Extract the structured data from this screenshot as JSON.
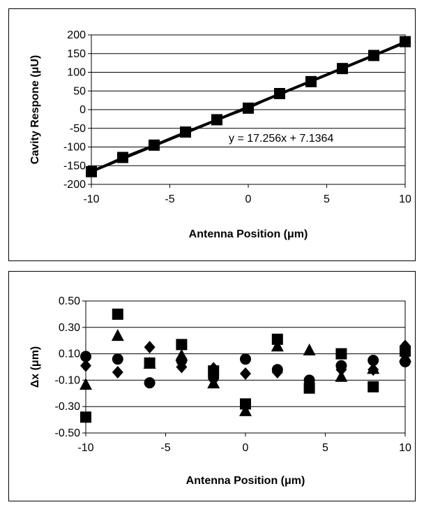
{
  "chart_data": [
    {
      "type": "line",
      "xlabel": "Antenna Position (μm)",
      "ylabel": "Cavity Respone (μU)",
      "xlim": [
        -10,
        10
      ],
      "ylim": [
        -200,
        200
      ],
      "xticks": [
        "-10",
        "-5",
        "0",
        "5",
        "10"
      ],
      "yticks": [
        "200",
        "150",
        "100",
        "50",
        "0",
        "-50",
        "-100",
        "-150",
        "-200"
      ],
      "grid": "horizontal",
      "annotation": "y = 17.256x + 7.1364",
      "trendline": {
        "slope": 17.256,
        "intercept": 7.1364
      },
      "series": [
        {
          "marker": "square",
          "x": [
            -10,
            -8,
            -6,
            -4,
            -2,
            0,
            2,
            4,
            6,
            8,
            10
          ],
          "y": [
            -166,
            -128,
            -95,
            -60,
            -27,
            4,
            43,
            75,
            110,
            145,
            182
          ]
        }
      ]
    },
    {
      "type": "scatter",
      "xlabel": "Antenna Position (μm)",
      "ylabel": "Δx (μm)",
      "xlim": [
        -10,
        10
      ],
      "ylim": [
        -0.5,
        0.5
      ],
      "xticks": [
        "-10",
        "-5",
        "0",
        "5",
        "10"
      ],
      "yticks": [
        "0.50",
        "0.30",
        "0.10",
        "-0.10",
        "-0.30",
        "-0.50"
      ],
      "grid": "horizontal",
      "series": [
        {
          "marker": "square",
          "x": [
            -10,
            -8,
            -6,
            -4,
            -2,
            0,
            2,
            4,
            6,
            8,
            10
          ],
          "y": [
            -0.38,
            0.4,
            0.03,
            0.17,
            -0.03,
            -0.28,
            0.21,
            -0.16,
            0.1,
            -0.15,
            0.12
          ]
        },
        {
          "marker": "triangle",
          "x": [
            -10,
            -8,
            -6,
            -4,
            -2,
            0,
            2,
            4,
            6,
            8,
            10
          ],
          "y": [
            -0.13,
            0.24,
            0.03,
            0.09,
            -0.12,
            -0.33,
            0.16,
            0.13,
            -0.07,
            -0.01,
            0.08
          ]
        },
        {
          "marker": "diamond",
          "x": [
            -10,
            -8,
            -6,
            -4,
            -2,
            0,
            2,
            4,
            6,
            8,
            10
          ],
          "y": [
            0.01,
            -0.04,
            0.15,
            0.0,
            -0.01,
            -0.05,
            -0.04,
            -0.13,
            -0.02,
            -0.02,
            0.16
          ]
        },
        {
          "marker": "circle",
          "x": [
            -10,
            -8,
            -6,
            -4,
            -2,
            0,
            2,
            4,
            6,
            8,
            10
          ],
          "y": [
            0.08,
            0.06,
            -0.12,
            0.05,
            -0.08,
            0.06,
            -0.02,
            -0.1,
            0.01,
            0.05,
            0.04
          ]
        }
      ]
    }
  ]
}
